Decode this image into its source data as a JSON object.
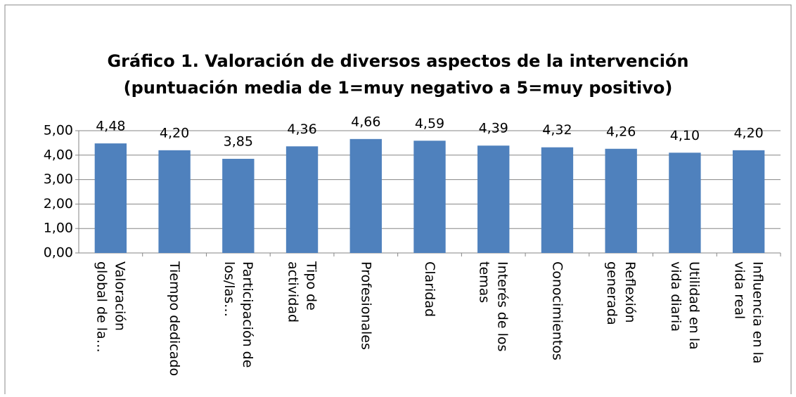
{
  "chart_data": {
    "type": "bar",
    "title": "Gráfico 1. Valoración de diversos aspectos de la intervención",
    "subtitle": "(puntuación media de 1=muy negativo a 5=muy positivo)",
    "categories": [
      "Valoración global de la…",
      "Tiempo dedicado",
      "Participación de los/las…",
      "Tipo de actividad",
      "Profesionales",
      "Claridad",
      "Interés de los temas",
      "Conocimientos",
      "Reflexión generada",
      "Utilidad en la vida diaria",
      "Influencia en la vida real"
    ],
    "values": [
      4.48,
      4.2,
      3.85,
      4.36,
      4.66,
      4.59,
      4.39,
      4.32,
      4.26,
      4.1,
      4.2
    ],
    "value_labels": [
      "4,48",
      "4,20",
      "3,85",
      "4,36",
      "4,66",
      "4,59",
      "4,39",
      "4,32",
      "4,26",
      "4,10",
      "4,20"
    ],
    "color": "#4f81bd",
    "ylim": [
      0,
      5
    ],
    "yticks": [
      {
        "value": 0,
        "label": "0,00"
      },
      {
        "value": 1,
        "label": "1,00"
      },
      {
        "value": 2,
        "label": "2,00"
      },
      {
        "value": 3,
        "label": "3,00"
      },
      {
        "value": 4,
        "label": "4,00"
      },
      {
        "value": 5,
        "label": "5,00"
      }
    ],
    "grid": true
  }
}
